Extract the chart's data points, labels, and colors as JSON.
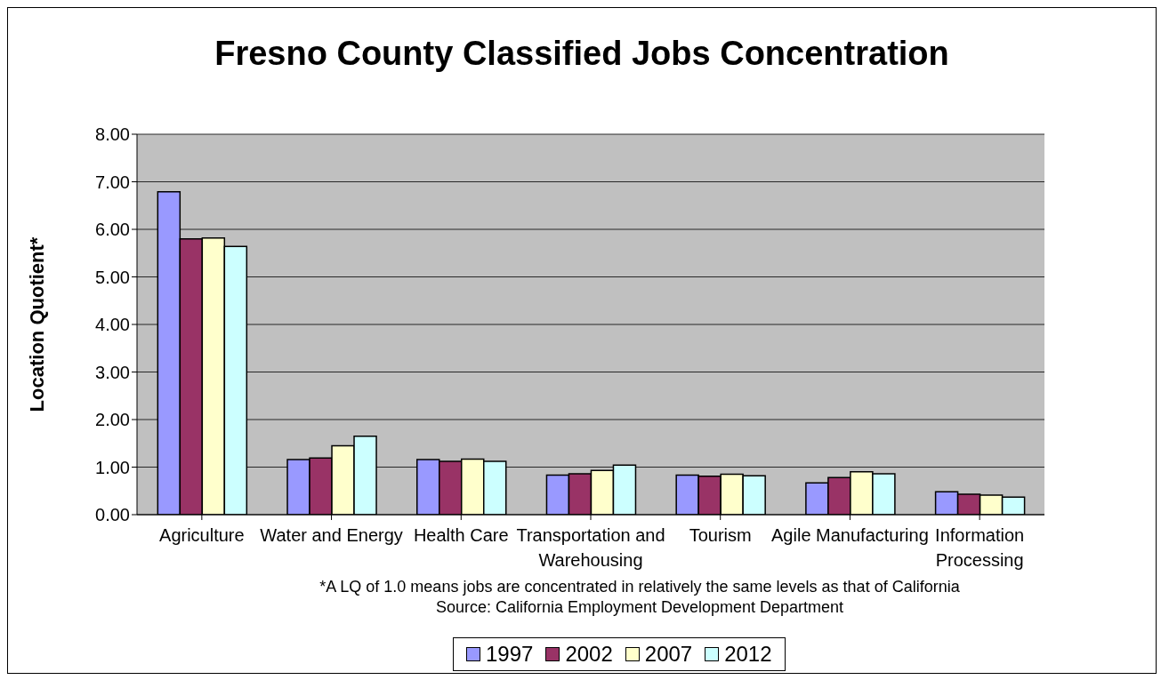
{
  "chart_data": {
    "type": "bar",
    "title": "Fresno County Classified Jobs Concentration",
    "ylabel": "Location Quotient*",
    "categories": [
      "Agriculture",
      "Water and Energy",
      "Health Care",
      "Transportation and Warehousing",
      "Tourism",
      "Agile Manufacturing",
      "Information Processing"
    ],
    "series": [
      {
        "name": "1997",
        "color": "#9999ff",
        "values": [
          6.79,
          1.16,
          1.16,
          0.83,
          0.83,
          0.67,
          0.48
        ]
      },
      {
        "name": "2002",
        "color": "#993366",
        "values": [
          5.8,
          1.19,
          1.12,
          0.86,
          0.81,
          0.78,
          0.43
        ]
      },
      {
        "name": "2007",
        "color": "#ffffcc",
        "values": [
          5.82,
          1.45,
          1.17,
          0.93,
          0.85,
          0.9,
          0.41
        ]
      },
      {
        "name": "2012",
        "color": "#ccffff",
        "values": [
          5.64,
          1.65,
          1.12,
          1.04,
          0.82,
          0.86,
          0.37
        ]
      }
    ],
    "ylim": [
      0,
      8
    ],
    "yticks": [
      {
        "value": 0,
        "label": "0.00"
      },
      {
        "value": 1,
        "label": "1.00"
      },
      {
        "value": 2,
        "label": "2.00"
      },
      {
        "value": 3,
        "label": "3.00"
      },
      {
        "value": 4,
        "label": "4.00"
      },
      {
        "value": 5,
        "label": "5.00"
      },
      {
        "value": 6,
        "label": "6.00"
      },
      {
        "value": 7,
        "label": "7.00"
      },
      {
        "value": 8,
        "label": "8.00"
      }
    ],
    "grid": "y",
    "legend": "bottom",
    "annotations": [
      "*A LQ of 1.0 means jobs are concentrated in relatively the same levels as that of California",
      "Source: California Employment Development Department"
    ]
  }
}
